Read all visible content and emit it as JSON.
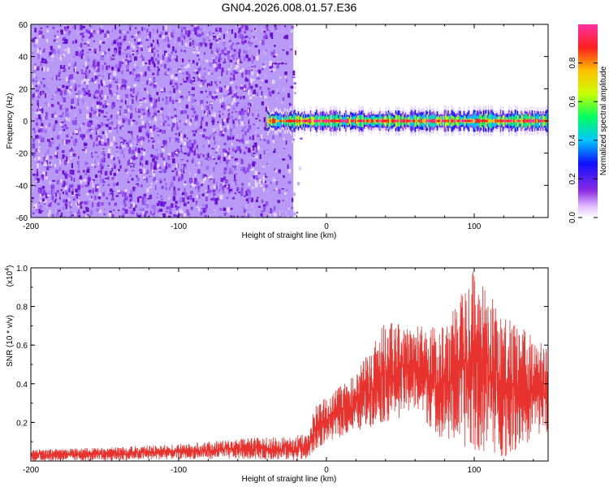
{
  "title": "GN04.2026.008.01.57.E36",
  "chart_data": [
    {
      "type": "heatmap",
      "title": "GN04.2026.008.01.57.E36",
      "xlabel": "Height of straight line (km)",
      "ylabel": "Frequency (Hz)",
      "xlim": [
        -200,
        150
      ],
      "ylim": [
        -60,
        60
      ],
      "xticks": [
        "-200",
        "-100",
        "0",
        "100"
      ],
      "xtick_values": [
        -200,
        -100,
        0,
        100
      ],
      "yticks": [
        "60",
        "40",
        "20",
        "0",
        "-20",
        "-40",
        "-60"
      ],
      "ytick_values": [
        60,
        40,
        20,
        0,
        -20,
        -40,
        -60
      ],
      "colorbar": {
        "label": "Normalized spectral amplitude",
        "ticks": [
          "0.0",
          "0.2",
          "0.4",
          "0.6",
          "0.8"
        ],
        "tick_values": [
          0.0,
          0.2,
          0.4,
          0.6,
          0.8
        ],
        "range": [
          0,
          1
        ]
      },
      "regions": [
        {
          "name": "broadband noise",
          "x_range": [
            -200,
            -18
          ],
          "freq_range": [
            -60,
            60
          ],
          "amplitude": 0.1
        },
        {
          "name": "narrowband signal",
          "x_range": [
            -40,
            150
          ],
          "center_freq": 0,
          "halfwidth_hz": 5,
          "peak_amplitude": 0.95
        }
      ]
    },
    {
      "type": "line",
      "xlabel": "Height of straight line (km)",
      "ylabel": "SNR (10 * v/v)",
      "y_multiplier_base": "(x10",
      "y_multiplier_exp": "4",
      "y_multiplier_close": ")",
      "xlim": [
        -200,
        150
      ],
      "ylim": [
        0,
        1.0
      ],
      "xticks": [
        "-200",
        "-100",
        "0",
        "100"
      ],
      "xtick_values": [
        -200,
        -100,
        0,
        100
      ],
      "yticks": [
        "0.2",
        "0.4",
        "0.6",
        "0.8",
        "1.0"
      ],
      "ytick_values": [
        0.2,
        0.4,
        0.6,
        0.8,
        1.0
      ],
      "series": [
        {
          "name": "SNR",
          "color": "#e8322e",
          "envelope": [
            {
              "x": -200,
              "low": 0.0,
              "high": 0.06
            },
            {
              "x": -150,
              "low": 0.0,
              "high": 0.07
            },
            {
              "x": -100,
              "low": 0.01,
              "high": 0.09
            },
            {
              "x": -50,
              "low": 0.01,
              "high": 0.12
            },
            {
              "x": -12,
              "low": 0.0,
              "high": 0.14
            },
            {
              "x": -8,
              "low": 0.05,
              "high": 0.3
            },
            {
              "x": 0,
              "low": 0.1,
              "high": 0.33
            },
            {
              "x": 20,
              "low": 0.15,
              "high": 0.45
            },
            {
              "x": 40,
              "low": 0.2,
              "high": 0.73
            },
            {
              "x": 60,
              "low": 0.25,
              "high": 0.7
            },
            {
              "x": 80,
              "low": 0.1,
              "high": 0.7
            },
            {
              "x": 100,
              "low": 0.05,
              "high": 1.0
            },
            {
              "x": 120,
              "low": 0.02,
              "high": 0.75
            },
            {
              "x": 150,
              "low": 0.15,
              "high": 0.6
            }
          ]
        }
      ]
    }
  ]
}
